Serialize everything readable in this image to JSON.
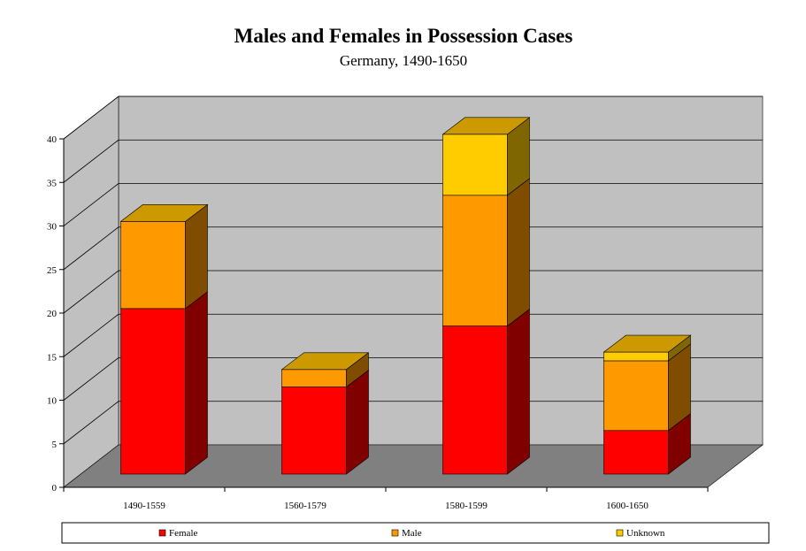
{
  "chart_data": {
    "type": "bar",
    "stacked": true,
    "three_d": true,
    "title": "Males and Females in Possession Cases",
    "subtitle": "Germany, 1490-1650",
    "categories": [
      "1490-1559",
      "1560-1579",
      "1580-1599",
      "1600-1650"
    ],
    "series": [
      {
        "name": "Female",
        "values": [
          19,
          10,
          17,
          5
        ],
        "color": "#ff0000",
        "side_color": "#800000"
      },
      {
        "name": "Male",
        "values": [
          10,
          2,
          15,
          8
        ],
        "color": "#ff9900",
        "side_color": "#7f4c00"
      },
      {
        "name": "Unknown",
        "values": [
          0,
          0,
          7,
          1
        ],
        "color": "#ffcc00",
        "side_color": "#806600"
      }
    ],
    "ylim": [
      0,
      40
    ],
    "yticks": [
      "0",
      "5",
      "10",
      "15",
      "20",
      "25",
      "30",
      "35",
      "40"
    ],
    "grid": true,
    "legend_position": "bottom",
    "colors": {
      "wall": "#c0c0c0",
      "floor": "#808080",
      "bar_top": "#cc9900"
    }
  }
}
